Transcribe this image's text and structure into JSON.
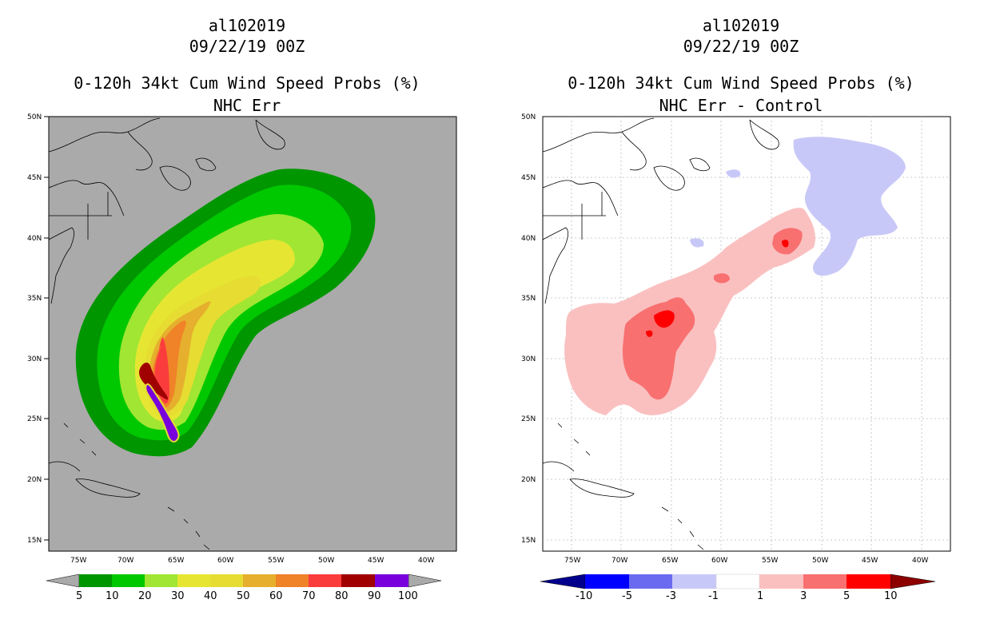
{
  "panels": [
    {
      "storm_id": "al102019",
      "datetime": "09/22/19 00Z",
      "product": "0-120h 34kt Cum Wind Speed Probs (%)",
      "subtitle": "NHC Err",
      "colorbar": {
        "labels": [
          "5",
          "10",
          "20",
          "30",
          "40",
          "50",
          "60",
          "70",
          "80",
          "90",
          "100"
        ],
        "colors": [
          "#009600",
          "#00c800",
          "#00e600",
          "#a0e632",
          "#e6e632",
          "#e6dc32",
          "#e6af2d",
          "#f08228",
          "#fa3c3c",
          "#a00000",
          "#7800dc"
        ],
        "background": "#aaaaaa"
      }
    },
    {
      "storm_id": "al102019",
      "datetime": "09/22/19 00Z",
      "product": "0-120h 34kt Cum Wind Speed Probs (%)",
      "subtitle": "NHC Err - Control",
      "colorbar": {
        "labels": [
          "-10",
          "-5",
          "-3",
          "-1",
          "1",
          "3",
          "5",
          "10"
        ],
        "colors": [
          "#00008c",
          "#0000ff",
          "#6a6af0",
          "#c8c8f8",
          "#ffffff",
          "#fac0c0",
          "#f87070",
          "#ff0000",
          "#8c0000"
        ]
      }
    }
  ],
  "axes": {
    "lat_labels": [
      "50N",
      "45N",
      "40N",
      "35N",
      "30N",
      "25N",
      "20N",
      "15N"
    ],
    "lon_labels": [
      "75W",
      "70W",
      "65W",
      "60W",
      "55W",
      "50W",
      "45W",
      "40W"
    ]
  }
}
